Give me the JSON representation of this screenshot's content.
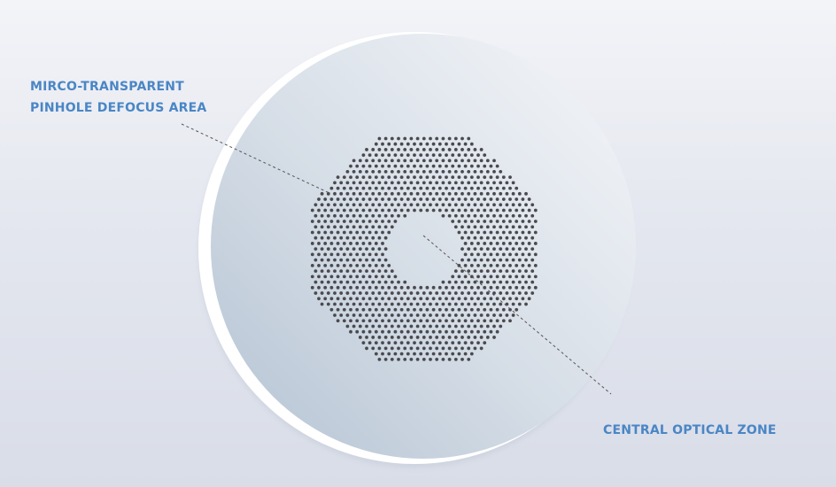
{
  "labels": {
    "defocus_line1": "MIRCO-TRANSPARENT",
    "defocus_line2": "PINHOLE DEFOCUS AREA",
    "central_zone": "CENTRAL OPTICAL ZONE"
  },
  "colors": {
    "label": "#4a86c5",
    "dot": "#4a4a4e",
    "leader_line": "#555555",
    "lens_rim": "#ffffff",
    "lens_fill": "#c8d2de"
  },
  "pattern": {
    "shape": "octagon",
    "dot_grid": "hexagonal"
  }
}
